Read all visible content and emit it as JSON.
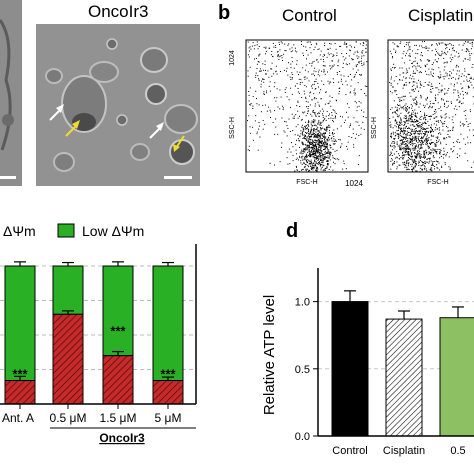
{
  "panel_a": {
    "title_right": "OncoIr3",
    "arrow_colors": {
      "white": "#ffffff",
      "yellow": "#f2dc2e"
    }
  },
  "panel_b": {
    "letter": "b",
    "titles": [
      "Control",
      "Cisplatin"
    ],
    "y_axis_label": "SSC-H",
    "x_axis_label": "FSC-H",
    "y_max_tick": "1024",
    "x_max_tick": "1024"
  },
  "panel_c": {
    "legend_left": "ΔΨm",
    "legend_right": "Low ΔΨm",
    "group_label": "OncoIr3",
    "colors": {
      "high": "#c62a2a",
      "low": "#29b024"
    },
    "chart_data": {
      "type": "bar",
      "stacked": true,
      "categories": [
        "Ant. A",
        "0.5 μM",
        "1.5 μM",
        "5 μM"
      ],
      "series": [
        {
          "name": "",
          "values": [
            17,
            65,
            35,
            17
          ]
        },
        {
          "name": "Low ΔΨm",
          "values": [
            83,
            35,
            65,
            83
          ]
        }
      ],
      "errors": [
        3,
        2.5,
        3,
        2.5
      ],
      "significance": [
        "***",
        "",
        "***",
        "***"
      ],
      "ylim": [
        0,
        100
      ]
    }
  },
  "panel_d": {
    "letter": "d",
    "colors": {
      "control": "#000000",
      "cisplatin": "#ffffff",
      "oncoir3": "#8cc063"
    },
    "chart_data": {
      "type": "bar",
      "categories": [
        "Control",
        "Cisplatin",
        "0.5"
      ],
      "values": [
        1.0,
        0.87,
        0.88
      ],
      "errors": [
        0.08,
        0.06,
        0.08
      ],
      "ylabel": "Relative ATP level",
      "ylim": [
        0,
        1.25
      ],
      "yticks": [
        "0.0",
        "0.5",
        "1.0"
      ],
      "grid": true
    }
  }
}
